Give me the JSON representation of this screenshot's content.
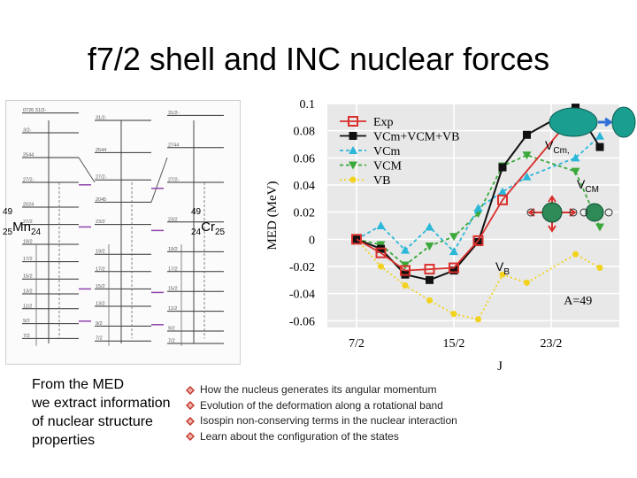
{
  "title": "f7/2 shell and INC nuclear forces",
  "nuclei": {
    "left": {
      "mass": "49",
      "z": "25",
      "symbol": "Mn",
      "n": "24"
    },
    "right": {
      "mass": "49",
      "z": "24",
      "symbol": "Cr",
      "n": "25"
    }
  },
  "level_scheme": {
    "columns": 3,
    "levels": [
      {
        "col": 0,
        "e": 0.02,
        "label": "0726 31/2-"
      },
      {
        "col": 0,
        "e": 0.1,
        "label": "3/2-"
      },
      {
        "col": 0,
        "e": 0.2,
        "label": "2544"
      },
      {
        "col": 0,
        "e": 0.3,
        "label": "27/2-"
      },
      {
        "col": 0,
        "e": 0.4,
        "label": "2024"
      },
      {
        "col": 0,
        "e": 0.47,
        "label": "27/2"
      },
      {
        "col": 0,
        "e": 0.55,
        "label": "19/2"
      },
      {
        "col": 0,
        "e": 0.62,
        "label": "17/2"
      },
      {
        "col": 0,
        "e": 0.69,
        "label": "15/2"
      },
      {
        "col": 0,
        "e": 0.75,
        "label": "13/2"
      },
      {
        "col": 0,
        "e": 0.81,
        "label": "11/2"
      },
      {
        "col": 0,
        "e": 0.87,
        "label": "9/2"
      },
      {
        "col": 0,
        "e": 0.93,
        "label": "7/2"
      },
      {
        "col": 1,
        "e": 0.05,
        "label": "31/2-"
      },
      {
        "col": 1,
        "e": 0.18,
        "label": "2544"
      },
      {
        "col": 1,
        "e": 0.29,
        "label": "27/2-"
      },
      {
        "col": 1,
        "e": 0.38,
        "label": "2045"
      },
      {
        "col": 1,
        "e": 0.47,
        "label": "23/2"
      },
      {
        "col": 1,
        "e": 0.59,
        "label": "19/2"
      },
      {
        "col": 1,
        "e": 0.66,
        "label": "17/2"
      },
      {
        "col": 1,
        "e": 0.73,
        "label": "15/2"
      },
      {
        "col": 1,
        "e": 0.8,
        "label": "13/2"
      },
      {
        "col": 1,
        "e": 0.88,
        "label": "9/2"
      },
      {
        "col": 1,
        "e": 0.94,
        "label": "7/2"
      },
      {
        "col": 2,
        "e": 0.03,
        "label": "31/2-"
      },
      {
        "col": 2,
        "e": 0.16,
        "label": "2744"
      },
      {
        "col": 2,
        "e": 0.3,
        "label": "27/2-"
      },
      {
        "col": 2,
        "e": 0.46,
        "label": "23/2"
      },
      {
        "col": 2,
        "e": 0.58,
        "label": "19/2"
      },
      {
        "col": 2,
        "e": 0.66,
        "label": "17/2"
      },
      {
        "col": 2,
        "e": 0.74,
        "label": "15/2"
      },
      {
        "col": 2,
        "e": 0.82,
        "label": "11/2"
      },
      {
        "col": 2,
        "e": 0.9,
        "label": "9/2"
      },
      {
        "col": 2,
        "e": 0.95,
        "label": "7/2"
      }
    ]
  },
  "chart_data": {
    "type": "line",
    "title": "",
    "xlabel": "J",
    "ylabel": "MED (MeV)",
    "x": [
      3.5,
      4.5,
      5.5,
      6.5,
      7.5,
      8.5,
      9.5,
      10.5,
      11.5,
      12.5,
      13.5
    ],
    "xticks": [
      3.5,
      7.5,
      11.5
    ],
    "xtick_labels": [
      "7/2",
      "15/2",
      "23/2"
    ],
    "xlim": [
      2.3,
      14.3
    ],
    "ylim": [
      -0.065,
      0.1
    ],
    "yticks": [
      -0.06,
      -0.04,
      -0.02,
      0,
      0.02,
      0.04,
      0.06,
      0.08,
      0.1
    ],
    "ytick_labels": [
      "-0.06",
      "-0.04",
      "-0.02",
      "0",
      "0.02",
      "0.04",
      "0.06",
      "0.08",
      "0.1"
    ],
    "annotation": "A=49",
    "legend_position": "top-left",
    "series": [
      {
        "name": "Exp",
        "color": "#d9302c",
        "dash": "",
        "marker": "square-open",
        "values": [
          0.0,
          -0.01,
          -0.023,
          -0.022,
          -0.021,
          -0.001,
          0.029,
          null,
          null,
          0.093,
          null
        ]
      },
      {
        "name": "VCm+VCM+VB",
        "color": "#111111",
        "dash": "",
        "marker": "square",
        "values": [
          0.0,
          -0.007,
          -0.026,
          -0.03,
          -0.023,
          -0.002,
          0.053,
          0.077,
          null,
          0.097,
          0.068
        ]
      },
      {
        "name": "VCm",
        "color": "#2ab7d8",
        "dash": "4,3",
        "marker": "triangle-up",
        "values": [
          0.0,
          0.01,
          -0.008,
          0.009,
          -0.009,
          0.023,
          0.035,
          0.046,
          null,
          0.06,
          0.076
        ]
      },
      {
        "name": "VCM",
        "color": "#3aa83a",
        "dash": "4,3",
        "marker": "triangle-down",
        "values": [
          0.0,
          -0.004,
          -0.019,
          -0.005,
          0.002,
          0.019,
          0.054,
          0.062,
          null,
          0.05,
          0.009
        ]
      },
      {
        "name": "VB",
        "color": "#f2d21c",
        "dash": "2,3",
        "marker": "circle",
        "values": [
          0.0,
          -0.02,
          -0.034,
          -0.045,
          -0.055,
          -0.059,
          -0.026,
          -0.032,
          null,
          -0.011,
          -0.021
        ]
      }
    ]
  },
  "chart_annotations": {
    "vcm_small_label": "V",
    "vcm_small_sub": "Cm,",
    "vcm_large_label": "V",
    "vcm_large_sub": "CM",
    "vb_label": "V",
    "vb_sub": "B"
  },
  "summary_text": [
    "From the MED",
    "we extract information",
    "of nuclear structure",
    "properties"
  ],
  "bullets": [
    "How the nucleus generates its angular momentum",
    "Evolution of the deformation along a rotational band",
    "Isospin non-conserving terms in the nuclear interaction",
    "Learn about the configuration of the states"
  ],
  "colors": {
    "bullet": "#c0392b",
    "nucleon": "#1a9e8f",
    "arrow_blue": "#2f6fd6",
    "arrow_red": "#d9302c",
    "pair_ball": "#2e8b57"
  }
}
